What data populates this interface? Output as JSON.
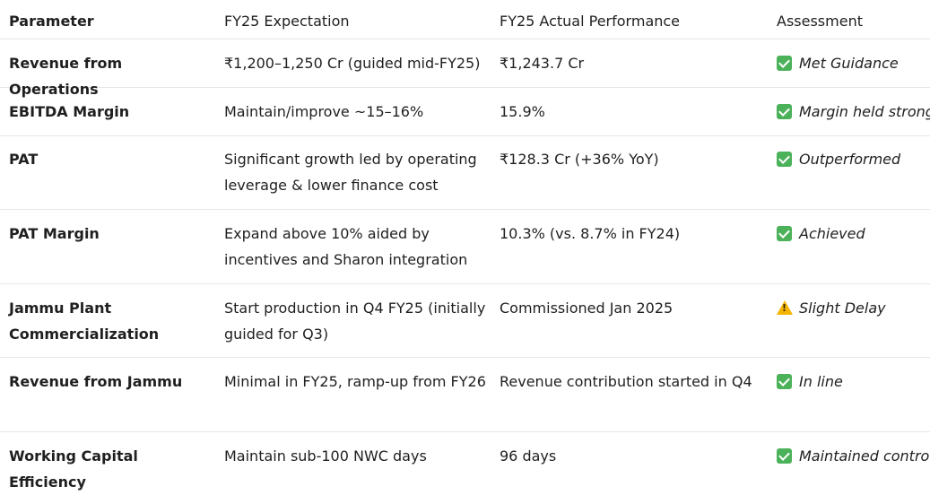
{
  "headers": [
    "Parameter",
    "FY25 Expectation",
    "FY25 Actual Performance",
    "Assessment"
  ],
  "rows": [
    {
      "parameter": "Revenue from Operations",
      "expectation": "₹1,200–1,250 Cr (guided mid-FY25)",
      "actual": "₹1,243.7 Cr",
      "assessment": "Met Guidance",
      "icon": "check-icon"
    },
    {
      "parameter": "EBITDA Margin",
      "expectation": "Maintain/improve ~15–16%",
      "actual": "15.9%",
      "assessment": "Margin held strong",
      "icon": "check-icon"
    },
    {
      "parameter": "PAT",
      "expectation": "Significant growth led by operating leverage & lower finance cost",
      "actual": "₹128.3 Cr (+36% YoY)",
      "assessment": "Outperformed",
      "icon": "check-icon"
    },
    {
      "parameter": "PAT Margin",
      "expectation": "Expand above 10% aided by incentives and Sharon integration",
      "actual": "10.3% (vs. 8.7% in FY24)",
      "assessment": "Achieved",
      "icon": "check-icon"
    },
    {
      "parameter": "Jammu Plant Commercialization",
      "expectation": "Start production in Q4 FY25 (initially guided for Q3)",
      "actual": "Commissioned Jan 2025",
      "assessment": "Slight Delay",
      "icon": "warning-icon"
    },
    {
      "parameter": "Revenue from Jammu",
      "expectation": "Minimal in FY25, ramp-up from FY26",
      "actual": "Revenue contribution started in Q4",
      "assessment": "In line",
      "icon": "check-icon"
    },
    {
      "parameter": "Working Capital Efficiency",
      "expectation": "Maintain sub-100 NWC days",
      "actual": "96 days",
      "assessment": "Maintained control",
      "icon": "check-icon"
    }
  ]
}
